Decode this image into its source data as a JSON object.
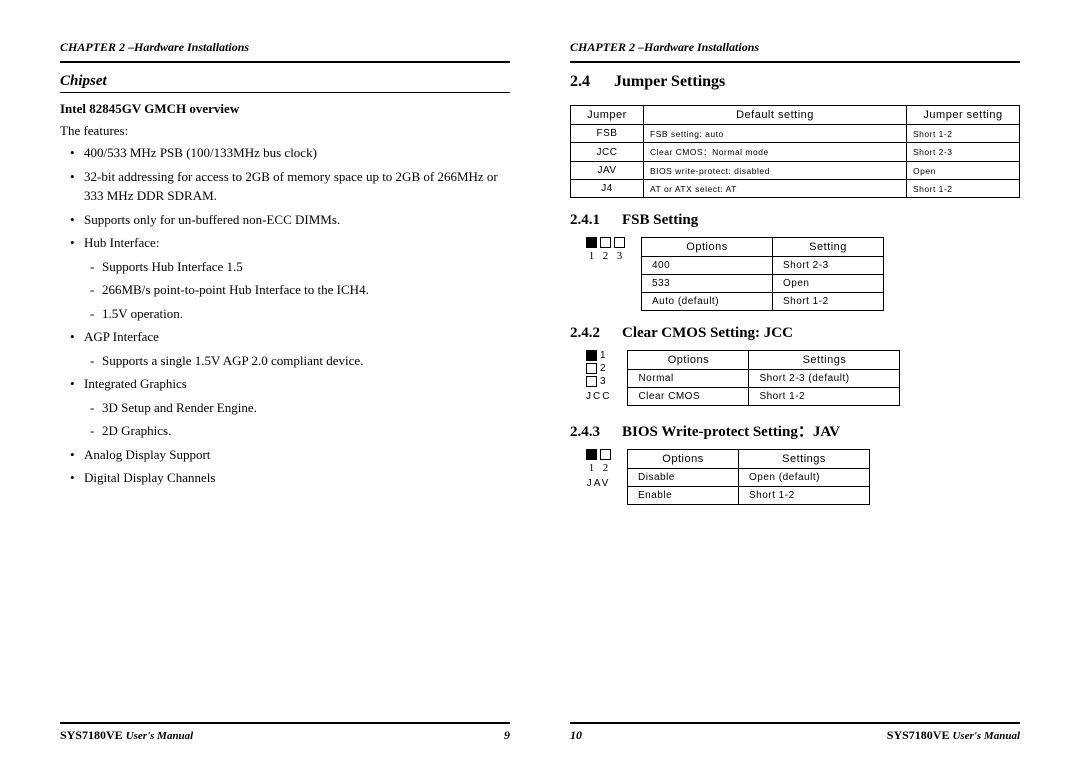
{
  "chapter_header": "CHAPTER 2 –Hardware Installations",
  "left": {
    "section_title": "Chipset",
    "sub_title": "Intel 82845GV GMCH overview",
    "features_intro": "The features:",
    "bullets": [
      {
        "t": "400/533 MHz PSB (100/133MHz bus clock)"
      },
      {
        "t": "32-bit addressing for access to 2GB of memory space up to 2GB of 266MHz or 333 MHz DDR SDRAM."
      },
      {
        "t": "Supports only for un-buffered non-ECC DIMMs."
      },
      {
        "t": "Hub Interface:",
        "sub": [
          "Supports Hub Interface 1.5",
          "266MB/s point-to-point Hub Interface to the ICH4.",
          "1.5V operation."
        ]
      },
      {
        "t": "AGP Interface",
        "sub": [
          "Supports a single 1.5V AGP 2.0 compliant device."
        ]
      },
      {
        "t": "Integrated Graphics",
        "sub": [
          "3D Setup and Render Engine.",
          "2D Graphics."
        ]
      },
      {
        "t": "Analog Display Support"
      },
      {
        "t": "Digital Display Channels"
      }
    ]
  },
  "right": {
    "h24_num": "2.4",
    "h24_title": "Jumper Settings",
    "main_table": {
      "headers": [
        "Jumper",
        "Default setting",
        "Jumper setting"
      ],
      "rows": [
        [
          "FSB",
          "FSB setting: auto",
          "Short 1-2"
        ],
        [
          "JCC",
          "Clear CMOS：Normal mode",
          "Short 2-3"
        ],
        [
          "JAV",
          "BIOS write-protect: disabled",
          "Open"
        ],
        [
          "J4",
          "AT or ATX select: AT",
          "Short 1-2"
        ]
      ]
    },
    "s241": {
      "num": "2.4.1",
      "title": "FSB Setting",
      "opt_headers": [
        "Options",
        "Setting"
      ],
      "rows": [
        [
          "400",
          "Short 2-3"
        ],
        [
          "533",
          "Open"
        ],
        [
          "Auto (default)",
          "Short 1-2"
        ]
      ],
      "pin_nums": [
        "1",
        "2",
        "3"
      ],
      "pin_fill": [
        true,
        false,
        false
      ]
    },
    "s242": {
      "num": "2.4.2",
      "title": "Clear CMOS Setting: JCC",
      "opt_headers": [
        "Options",
        "Settings"
      ],
      "rows": [
        [
          "Normal",
          "Short 2-3 (default)"
        ],
        [
          "Clear CMOS",
          "Short 1-2"
        ]
      ],
      "side_nums": [
        "1",
        "2",
        "3"
      ],
      "pin_fill": [
        true,
        false,
        false
      ],
      "label": "JCC"
    },
    "s243": {
      "num": "2.4.3",
      "title": "BIOS Write-protect Setting：JAV",
      "opt_headers": [
        "Options",
        "Settings"
      ],
      "rows": [
        [
          "Disable",
          "Open (default)"
        ],
        [
          "Enable",
          "Short 1-2"
        ]
      ],
      "pin_nums": [
        "1",
        "2"
      ],
      "pin_fill": [
        true,
        false
      ],
      "label": "JAV"
    }
  },
  "footer": {
    "manual": "SYS7180VE",
    "um": "User's Manual",
    "page_left": "9",
    "page_right": "10"
  }
}
